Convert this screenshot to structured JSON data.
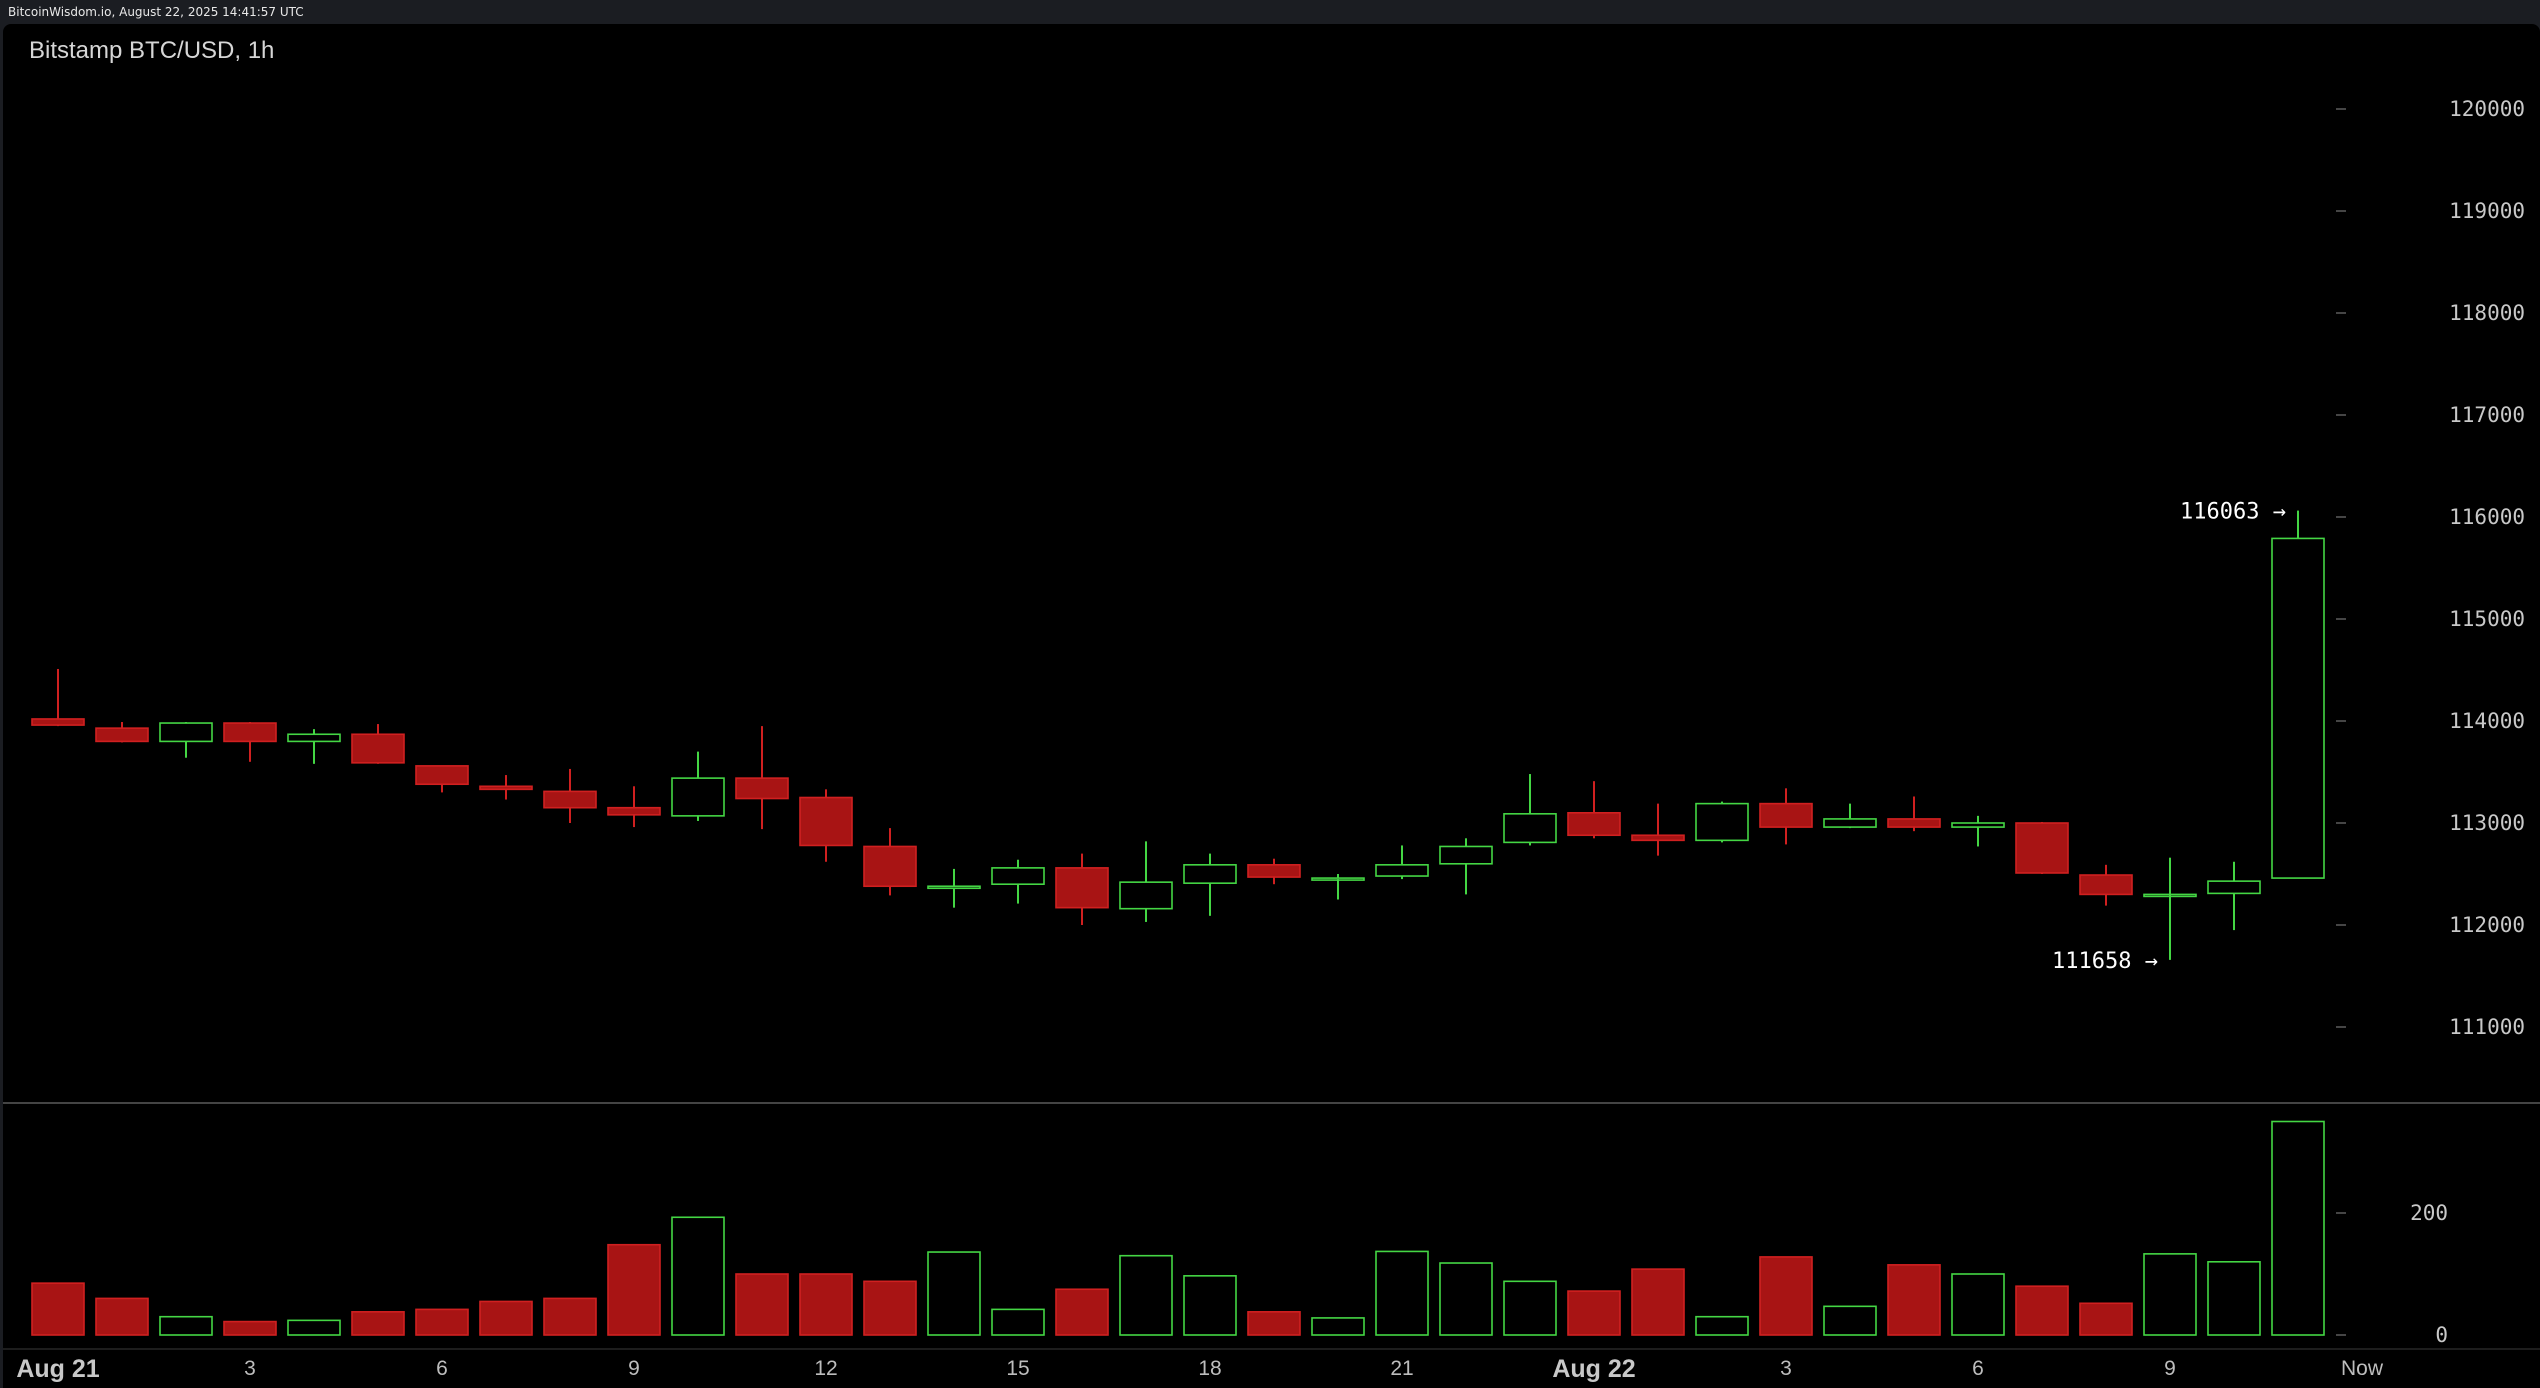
{
  "header": {
    "text": "BitcoinWisdom.io, August 22, 2025 14:41:57 UTC"
  },
  "chart_data": {
    "type": "candlestick",
    "title": "Bitstamp BTC/USD, 1h",
    "y_axis": {
      "ticks": [
        120000,
        119000,
        118000,
        117000,
        116000,
        115000,
        114000,
        113000,
        112000,
        111000
      ],
      "ylim": [
        110000,
        120800
      ]
    },
    "volume_axis": {
      "ticks": [
        200,
        0
      ],
      "ylim": [
        0,
        360
      ]
    },
    "x_axis": {
      "ticks": [
        {
          "label": "Aug 21",
          "index": 0,
          "major": true
        },
        {
          "label": "3",
          "index": 3,
          "major": false
        },
        {
          "label": "6",
          "index": 6,
          "major": false
        },
        {
          "label": "9",
          "index": 9,
          "major": false
        },
        {
          "label": "12",
          "index": 12,
          "major": false
        },
        {
          "label": "15",
          "index": 15,
          "major": false
        },
        {
          "label": "18",
          "index": 18,
          "major": false
        },
        {
          "label": "21",
          "index": 21,
          "major": false
        },
        {
          "label": "Aug 22",
          "index": 24,
          "major": true
        },
        {
          "label": "3",
          "index": 27,
          "major": false
        },
        {
          "label": "6",
          "index": 30,
          "major": false
        },
        {
          "label": "9",
          "index": 33,
          "major": false
        },
        {
          "label": "Now",
          "index": 36,
          "major": false
        }
      ]
    },
    "colors": {
      "up": "#44d644",
      "down": "#a81414",
      "down_edge": "#d02020",
      "background": "#000000",
      "text": "#c8c8c8"
    },
    "candles": [
      {
        "o": 114020,
        "h": 114510,
        "l": 113950,
        "c": 113960,
        "v": 85
      },
      {
        "o": 113930,
        "h": 113990,
        "l": 113790,
        "c": 113800,
        "v": 60
      },
      {
        "o": 113800,
        "h": 113990,
        "l": 113640,
        "c": 113980,
        "v": 30
      },
      {
        "o": 113980,
        "h": 113990,
        "l": 113600,
        "c": 113800,
        "v": 22
      },
      {
        "o": 113800,
        "h": 113920,
        "l": 113580,
        "c": 113870,
        "v": 24
      },
      {
        "o": 113870,
        "h": 113970,
        "l": 113580,
        "c": 113590,
        "v": 38
      },
      {
        "o": 113560,
        "h": 113560,
        "l": 113300,
        "c": 113380,
        "v": 42
      },
      {
        "o": 113360,
        "h": 113470,
        "l": 113230,
        "c": 113330,
        "v": 55
      },
      {
        "o": 113310,
        "h": 113530,
        "l": 113000,
        "c": 113150,
        "v": 60
      },
      {
        "o": 113150,
        "h": 113360,
        "l": 112960,
        "c": 113080,
        "v": 148
      },
      {
        "o": 113070,
        "h": 113700,
        "l": 113020,
        "c": 113440,
        "v": 193
      },
      {
        "o": 113440,
        "h": 113950,
        "l": 112940,
        "c": 113240,
        "v": 100
      },
      {
        "o": 113250,
        "h": 113330,
        "l": 112620,
        "c": 112780,
        "v": 100
      },
      {
        "o": 112770,
        "h": 112950,
        "l": 112290,
        "c": 112380,
        "v": 88
      },
      {
        "o": 112360,
        "h": 112550,
        "l": 112170,
        "c": 112380,
        "v": 136
      },
      {
        "o": 112400,
        "h": 112640,
        "l": 112210,
        "c": 112560,
        "v": 42
      },
      {
        "o": 112560,
        "h": 112700,
        "l": 112000,
        "c": 112170,
        "v": 75
      },
      {
        "o": 112160,
        "h": 112820,
        "l": 112030,
        "c": 112420,
        "v": 130
      },
      {
        "o": 112410,
        "h": 112700,
        "l": 112090,
        "c": 112590,
        "v": 97
      },
      {
        "o": 112590,
        "h": 112650,
        "l": 112400,
        "c": 112470,
        "v": 38
      },
      {
        "o": 112450,
        "h": 112500,
        "l": 112250,
        "c": 112460,
        "v": 28
      },
      {
        "o": 112480,
        "h": 112780,
        "l": 112450,
        "c": 112590,
        "v": 137
      },
      {
        "o": 112600,
        "h": 112850,
        "l": 112300,
        "c": 112770,
        "v": 118
      },
      {
        "o": 112810,
        "h": 113480,
        "l": 112780,
        "c": 113090,
        "v": 88
      },
      {
        "o": 113100,
        "h": 113410,
        "l": 112850,
        "c": 112880,
        "v": 72
      },
      {
        "o": 112880,
        "h": 113190,
        "l": 112680,
        "c": 112830,
        "v": 108
      },
      {
        "o": 112830,
        "h": 113210,
        "l": 112810,
        "c": 113190,
        "v": 30
      },
      {
        "o": 113190,
        "h": 113340,
        "l": 112790,
        "c": 112960,
        "v": 128
      },
      {
        "o": 112960,
        "h": 113190,
        "l": 112950,
        "c": 113040,
        "v": 47
      },
      {
        "o": 113040,
        "h": 113260,
        "l": 112920,
        "c": 112960,
        "v": 115
      },
      {
        "o": 112960,
        "h": 113070,
        "l": 112770,
        "c": 113000,
        "v": 100
      },
      {
        "o": 113000,
        "h": 113010,
        "l": 112500,
        "c": 112510,
        "v": 80
      },
      {
        "o": 112490,
        "h": 112590,
        "l": 112190,
        "c": 112300,
        "v": 52
      },
      {
        "o": 112300,
        "h": 112660,
        "l": 111658,
        "c": 112300,
        "v": 133
      },
      {
        "o": 112310,
        "h": 112620,
        "l": 111950,
        "c": 112430,
        "v": 120
      },
      {
        "o": 112460,
        "h": 116063,
        "l": 112460,
        "c": 115790,
        "v": 350
      }
    ],
    "annotations": [
      {
        "text": "116063 →",
        "value": 116063,
        "index": 35
      },
      {
        "text": "111658 →",
        "value": 111658,
        "index": 33
      }
    ]
  }
}
